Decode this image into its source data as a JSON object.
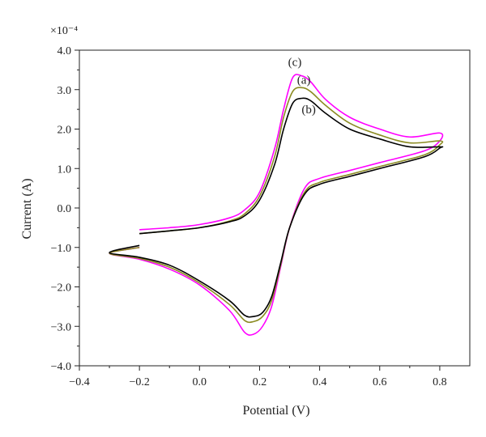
{
  "chart_data": {
    "type": "line",
    "xlabel": "Potential (V)",
    "ylabel": "Current (A)",
    "y_multiplier_label": "×10⁻⁴",
    "xlim": [
      -0.4,
      0.9
    ],
    "ylim": [
      -4.0,
      4.0
    ],
    "x_ticks": [
      -0.4,
      -0.2,
      0.0,
      0.2,
      0.4,
      0.6,
      0.8
    ],
    "x_tick_labels": [
      "−0.4",
      "−0.2",
      "0.0",
      "0.2",
      "0.4",
      "0.6",
      "0.8"
    ],
    "y_ticks": [
      -4.0,
      -3.0,
      -2.0,
      -1.0,
      0.0,
      1.0,
      2.0,
      3.0,
      4.0
    ],
    "y_tick_labels": [
      "−4.0",
      "−3.0",
      "−2.0",
      "−1.0",
      "0.0",
      "1.0",
      "2.0",
      "3.0",
      "4.0"
    ],
    "grid": false,
    "legend": "none",
    "series": [
      {
        "color": "#ff00ff",
        "x": [
          -0.2,
          -0.1,
          0.0,
          0.1,
          0.15,
          0.2,
          0.25,
          0.28,
          0.31,
          0.34,
          0.37,
          0.42,
          0.5,
          0.6,
          0.7,
          0.8,
          0.8,
          0.75,
          0.6,
          0.5,
          0.4,
          0.35,
          0.3,
          0.27,
          0.24,
          0.21,
          0.18,
          0.15,
          0.1,
          0.0,
          -0.1,
          -0.2,
          -0.3,
          -0.2
        ],
        "y": [
          -0.55,
          -0.5,
          -0.42,
          -0.25,
          -0.05,
          0.4,
          1.5,
          2.5,
          3.3,
          3.35,
          3.2,
          2.75,
          2.3,
          2.0,
          1.8,
          1.9,
          1.7,
          1.45,
          1.15,
          0.95,
          0.75,
          0.5,
          -0.5,
          -1.5,
          -2.5,
          -3.0,
          -3.2,
          -3.15,
          -2.6,
          -1.95,
          -1.55,
          -1.3,
          -1.15,
          -1.0
        ]
      },
      {
        "color": "#8b8b22",
        "x": [
          -0.2,
          -0.1,
          0.0,
          0.1,
          0.15,
          0.2,
          0.25,
          0.28,
          0.31,
          0.34,
          0.37,
          0.42,
          0.5,
          0.6,
          0.7,
          0.8,
          0.8,
          0.75,
          0.6,
          0.5,
          0.4,
          0.35,
          0.3,
          0.27,
          0.24,
          0.21,
          0.18,
          0.15,
          0.1,
          0.0,
          -0.1,
          -0.2,
          -0.3,
          -0.2
        ],
        "y": [
          -0.65,
          -0.58,
          -0.5,
          -0.33,
          -0.15,
          0.3,
          1.3,
          2.3,
          2.95,
          3.05,
          2.95,
          2.6,
          2.15,
          1.85,
          1.65,
          1.7,
          1.6,
          1.35,
          1.05,
          0.85,
          0.65,
          0.4,
          -0.5,
          -1.45,
          -2.35,
          -2.75,
          -2.88,
          -2.85,
          -2.45,
          -1.9,
          -1.5,
          -1.28,
          -1.15,
          -1.0
        ]
      },
      {
        "color": "#000000",
        "x": [
          -0.2,
          -0.1,
          0.0,
          0.1,
          0.15,
          0.2,
          0.25,
          0.28,
          0.31,
          0.34,
          0.37,
          0.42,
          0.5,
          0.6,
          0.7,
          0.8,
          0.8,
          0.75,
          0.6,
          0.5,
          0.4,
          0.35,
          0.3,
          0.27,
          0.24,
          0.21,
          0.18,
          0.15,
          0.1,
          0.0,
          -0.1,
          -0.2,
          -0.3,
          -0.2
        ],
        "y": [
          -0.65,
          -0.58,
          -0.5,
          -0.35,
          -0.2,
          0.2,
          1.1,
          2.0,
          2.65,
          2.78,
          2.72,
          2.4,
          2.0,
          1.75,
          1.55,
          1.55,
          1.52,
          1.3,
          1.0,
          0.8,
          0.6,
          0.35,
          -0.5,
          -1.4,
          -2.25,
          -2.65,
          -2.75,
          -2.72,
          -2.35,
          -1.85,
          -1.45,
          -1.25,
          -1.13,
          -0.95
        ]
      }
    ],
    "annotations": [
      {
        "text": "(c)",
        "x": 0.295,
        "y": 3.6
      },
      {
        "text": "(a)",
        "x": 0.325,
        "y": 3.15
      },
      {
        "text": "(b)",
        "x": 0.34,
        "y": 2.4
      }
    ]
  }
}
